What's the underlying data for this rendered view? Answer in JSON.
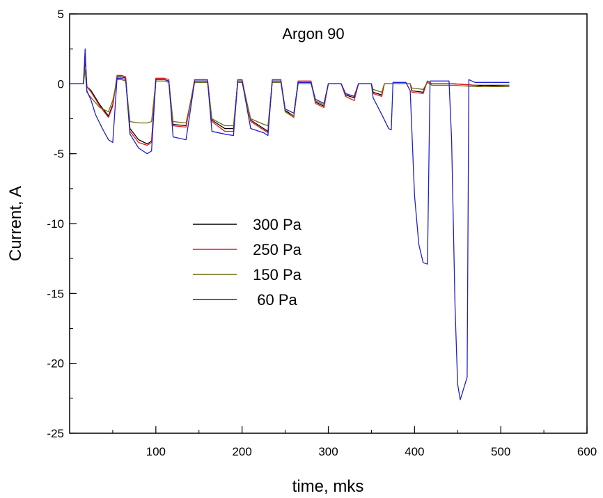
{
  "chart_data": {
    "type": "line",
    "title": "Argon 90",
    "xlabel": "time, mks",
    "ylabel": "Current, A",
    "xlim": [
      0,
      600
    ],
    "ylim": [
      -25,
      5
    ],
    "xticks": [
      100,
      200,
      300,
      400,
      500,
      600
    ],
    "yticks": [
      5,
      0,
      -5,
      -10,
      -15,
      -20,
      -25
    ],
    "grid": false,
    "legend_position": "center-left",
    "series": [
      {
        "name": "300 Pa",
        "color": "#000000",
        "points": [
          [
            0,
            0
          ],
          [
            16,
            0
          ],
          [
            18,
            1.8
          ],
          [
            20,
            -0.2
          ],
          [
            25,
            -0.5
          ],
          [
            35,
            -1.5
          ],
          [
            45,
            -2.3
          ],
          [
            50,
            -1.5
          ],
          [
            55,
            0.5
          ],
          [
            60,
            0.5
          ],
          [
            65,
            0.4
          ],
          [
            70,
            -3.2
          ],
          [
            80,
            -4.0
          ],
          [
            90,
            -4.3
          ],
          [
            95,
            -4.1
          ],
          [
            100,
            0.3
          ],
          [
            110,
            0.3
          ],
          [
            115,
            0.2
          ],
          [
            120,
            -2.9
          ],
          [
            135,
            -3.0
          ],
          [
            145,
            0.2
          ],
          [
            160,
            0.2
          ],
          [
            165,
            -2.6
          ],
          [
            180,
            -3.2
          ],
          [
            190,
            -3.2
          ],
          [
            195,
            0.2
          ],
          [
            200,
            0.2
          ],
          [
            210,
            -2.6
          ],
          [
            225,
            -3.2
          ],
          [
            230,
            -3.4
          ],
          [
            235,
            0.2
          ],
          [
            245,
            0.2
          ],
          [
            250,
            -1.9
          ],
          [
            260,
            -2.3
          ],
          [
            265,
            0.1
          ],
          [
            280,
            0.1
          ],
          [
            285,
            -1.3
          ],
          [
            295,
            -1.6
          ],
          [
            300,
            0.0
          ],
          [
            315,
            0.0
          ],
          [
            320,
            -0.8
          ],
          [
            330,
            -1.0
          ],
          [
            335,
            0.0
          ],
          [
            350,
            0.0
          ],
          [
            352,
            -0.6
          ],
          [
            362,
            -0.8
          ],
          [
            365,
            0.0
          ],
          [
            395,
            0.0
          ],
          [
            397,
            -0.5
          ],
          [
            410,
            -0.6
          ],
          [
            415,
            0.2
          ],
          [
            420,
            0.0
          ],
          [
            445,
            0.0
          ],
          [
            470,
            -0.1
          ],
          [
            480,
            -0.1
          ],
          [
            510,
            -0.1
          ]
        ]
      },
      {
        "name": "250 Pa",
        "color": "#e8141e",
        "points": [
          [
            0,
            0
          ],
          [
            16,
            0
          ],
          [
            18,
            2.0
          ],
          [
            20,
            -0.2
          ],
          [
            25,
            -0.6
          ],
          [
            35,
            -1.6
          ],
          [
            45,
            -2.4
          ],
          [
            50,
            -1.6
          ],
          [
            55,
            0.6
          ],
          [
            60,
            0.6
          ],
          [
            65,
            0.5
          ],
          [
            70,
            -3.4
          ],
          [
            80,
            -4.2
          ],
          [
            90,
            -4.4
          ],
          [
            95,
            -4.2
          ],
          [
            100,
            0.4
          ],
          [
            110,
            0.4
          ],
          [
            115,
            0.3
          ],
          [
            120,
            -3.0
          ],
          [
            135,
            -3.1
          ],
          [
            145,
            0.3
          ],
          [
            160,
            0.3
          ],
          [
            165,
            -2.7
          ],
          [
            180,
            -3.4
          ],
          [
            190,
            -3.4
          ],
          [
            195,
            0.3
          ],
          [
            200,
            0.3
          ],
          [
            210,
            -2.7
          ],
          [
            225,
            -3.3
          ],
          [
            230,
            -3.5
          ],
          [
            235,
            0.3
          ],
          [
            245,
            0.3
          ],
          [
            250,
            -2.0
          ],
          [
            260,
            -2.4
          ],
          [
            265,
            0.2
          ],
          [
            280,
            0.2
          ],
          [
            285,
            -1.4
          ],
          [
            295,
            -1.7
          ],
          [
            300,
            0.0
          ],
          [
            315,
            0.0
          ],
          [
            320,
            -0.9
          ],
          [
            330,
            -1.2
          ],
          [
            335,
            0.0
          ],
          [
            350,
            0.0
          ],
          [
            352,
            -0.7
          ],
          [
            362,
            -0.9
          ],
          [
            365,
            0.0
          ],
          [
            395,
            0.0
          ],
          [
            397,
            -0.6
          ],
          [
            410,
            -0.7
          ],
          [
            415,
            0.2
          ],
          [
            420,
            0.0
          ],
          [
            445,
            0.0
          ],
          [
            470,
            -0.1
          ],
          [
            480,
            -0.2
          ],
          [
            510,
            -0.1
          ]
        ]
      },
      {
        "name": "150 Pa",
        "color": "#6b6b12",
        "points": [
          [
            0,
            0
          ],
          [
            16,
            0
          ],
          [
            18,
            1.0
          ],
          [
            20,
            -0.6
          ],
          [
            25,
            -1.0
          ],
          [
            35,
            -1.7
          ],
          [
            45,
            -2.0
          ],
          [
            50,
            -1.2
          ],
          [
            55,
            0.3
          ],
          [
            60,
            0.3
          ],
          [
            65,
            0.2
          ],
          [
            70,
            -2.7
          ],
          [
            80,
            -2.8
          ],
          [
            90,
            -2.8
          ],
          [
            95,
            -2.7
          ],
          [
            100,
            0.2
          ],
          [
            110,
            0.2
          ],
          [
            115,
            0.1
          ],
          [
            120,
            -2.7
          ],
          [
            135,
            -2.8
          ],
          [
            145,
            0.1
          ],
          [
            160,
            0.1
          ],
          [
            165,
            -2.5
          ],
          [
            180,
            -3.0
          ],
          [
            190,
            -3.0
          ],
          [
            195,
            0.1
          ],
          [
            200,
            0.1
          ],
          [
            210,
            -2.5
          ],
          [
            225,
            -2.9
          ],
          [
            230,
            -3.0
          ],
          [
            235,
            0.1
          ],
          [
            245,
            0.1
          ],
          [
            250,
            -2.0
          ],
          [
            260,
            -2.3
          ],
          [
            265,
            0.0
          ],
          [
            280,
            0.0
          ],
          [
            285,
            -1.2
          ],
          [
            295,
            -1.5
          ],
          [
            300,
            0.0
          ],
          [
            315,
            0.0
          ],
          [
            320,
            -0.7
          ],
          [
            330,
            -0.9
          ],
          [
            335,
            0.0
          ],
          [
            350,
            0.0
          ],
          [
            352,
            -0.4
          ],
          [
            362,
            -0.6
          ],
          [
            365,
            0.0
          ],
          [
            395,
            0.0
          ],
          [
            397,
            -0.3
          ],
          [
            410,
            -0.4
          ],
          [
            415,
            0.1
          ],
          [
            420,
            -0.1
          ],
          [
            445,
            -0.1
          ],
          [
            470,
            -0.2
          ],
          [
            480,
            -0.2
          ],
          [
            510,
            -0.2
          ]
        ]
      },
      {
        "name": "60 Pa",
        "color": "#1f1fcc",
        "points": [
          [
            0,
            0
          ],
          [
            16,
            0
          ],
          [
            18,
            2.5
          ],
          [
            20,
            -0.5
          ],
          [
            25,
            -1.2
          ],
          [
            30,
            -2.2
          ],
          [
            38,
            -3.2
          ],
          [
            45,
            -4.0
          ],
          [
            50,
            -4.2
          ],
          [
            55,
            0.4
          ],
          [
            60,
            0.4
          ],
          [
            65,
            0.3
          ],
          [
            70,
            -3.6
          ],
          [
            80,
            -4.6
          ],
          [
            90,
            -5.0
          ],
          [
            95,
            -4.8
          ],
          [
            100,
            0.3
          ],
          [
            110,
            0.3
          ],
          [
            115,
            0.2
          ],
          [
            120,
            -3.8
          ],
          [
            135,
            -4.0
          ],
          [
            145,
            0.2
          ],
          [
            160,
            0.2
          ],
          [
            165,
            -3.4
          ],
          [
            180,
            -3.6
          ],
          [
            190,
            -3.7
          ],
          [
            195,
            0.2
          ],
          [
            200,
            0.2
          ],
          [
            210,
            -3.2
          ],
          [
            225,
            -3.5
          ],
          [
            230,
            -3.7
          ],
          [
            235,
            0.2
          ],
          [
            245,
            0.2
          ],
          [
            250,
            -1.8
          ],
          [
            260,
            -2.1
          ],
          [
            265,
            0.1
          ],
          [
            280,
            0.1
          ],
          [
            285,
            -1.1
          ],
          [
            295,
            -1.4
          ],
          [
            300,
            0.0
          ],
          [
            315,
            0.0
          ],
          [
            320,
            -0.7
          ],
          [
            330,
            -0.9
          ],
          [
            335,
            0.0
          ],
          [
            350,
            0.0
          ],
          [
            352,
            -1.0
          ],
          [
            362,
            -2.2
          ],
          [
            370,
            -3.2
          ],
          [
            373,
            -3.3
          ],
          [
            375,
            0.1
          ],
          [
            390,
            0.1
          ],
          [
            395,
            -0.5
          ],
          [
            400,
            -8.0
          ],
          [
            405,
            -11.5
          ],
          [
            410,
            -12.8
          ],
          [
            415,
            -12.9
          ],
          [
            418,
            0.2
          ],
          [
            440,
            0.2
          ],
          [
            443,
            -4.0
          ],
          [
            447,
            -16.0
          ],
          [
            450,
            -21.5
          ],
          [
            453,
            -22.6
          ],
          [
            457,
            -21.8
          ],
          [
            461,
            -21.0
          ],
          [
            463,
            0.3
          ],
          [
            470,
            0.1
          ],
          [
            490,
            0.1
          ],
          [
            510,
            0.1
          ]
        ]
      }
    ]
  }
}
